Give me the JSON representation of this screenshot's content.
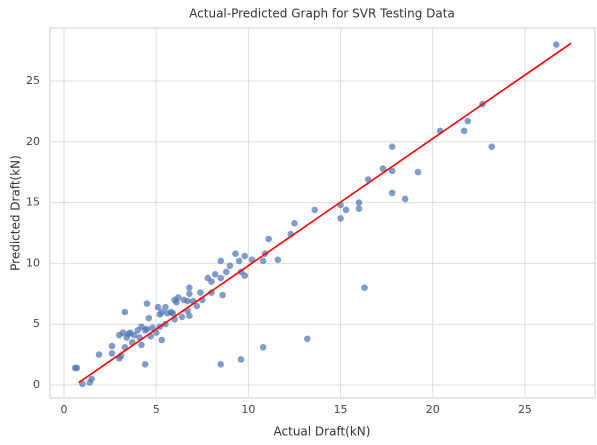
{
  "chart_data": {
    "type": "scatter",
    "title": "Actual-Predicted Graph for SVR Testing Data",
    "x_label": "Actual Draft(kN)",
    "y_label": "Predicted Draft(kN)",
    "xlim": [
      -0.76,
      28.8
    ],
    "ylim": [
      -1.07,
      29.36
    ],
    "xticks": [
      0,
      5,
      10,
      15,
      20,
      25
    ],
    "yticks": [
      0,
      5,
      10,
      15,
      20,
      25
    ],
    "grid": true,
    "series": [
      {
        "type": "scatter",
        "color": "#4c72b0",
        "x": [
          26.7,
          23.2,
          22.7,
          21.9,
          21.7,
          20.4,
          19.2,
          18.5,
          17.8,
          17.8,
          17.8,
          17.3,
          16.5,
          16.0,
          16.0,
          15.3,
          15.0,
          15.0,
          16.3,
          13.6,
          13.2,
          12.5,
          12.3,
          11.6,
          11.1,
          10.9,
          10.8,
          10.8,
          10.2,
          9.8,
          9.8,
          9.6,
          9.5,
          9.6,
          9.3,
          9.0,
          8.8,
          8.6,
          8.5,
          8.5,
          8.5,
          8.2,
          8.0,
          7.8,
          8.0,
          7.5,
          7.4,
          7.0,
          6.8,
          6.8,
          6.7,
          6.5,
          6.8,
          6.4,
          6.2,
          6.0,
          6.1,
          6.0,
          5.8,
          5.6,
          5.5,
          5.3,
          5.2,
          5.1,
          5.5,
          5.2,
          5.3,
          5.0,
          4.8,
          4.6,
          4.5,
          4.5,
          4.4,
          4.2,
          4.2,
          4.1,
          4.0,
          3.8,
          3.6,
          3.5,
          3.4,
          3.3,
          3.2,
          3.0,
          3.3,
          3.1,
          3.0,
          4.4,
          2.6,
          2.6,
          1.9,
          1.5,
          1.4,
          1.0,
          0.7,
          0.6,
          5.9,
          6.7,
          7.2,
          3.7,
          4.7
        ],
        "values": [
          28.0,
          19.6,
          23.1,
          21.7,
          20.9,
          20.9,
          17.5,
          15.3,
          19.6,
          17.6,
          15.8,
          17.8,
          16.9,
          15.0,
          14.5,
          14.4,
          14.8,
          13.7,
          8.0,
          14.4,
          3.8,
          13.3,
          12.4,
          10.3,
          12.0,
          10.8,
          10.2,
          3.1,
          10.3,
          10.6,
          9.0,
          9.3,
          10.2,
          2.1,
          10.8,
          9.8,
          9.3,
          7.4,
          10.2,
          8.8,
          1.7,
          9.1,
          8.5,
          8.8,
          7.6,
          7.0,
          7.6,
          6.9,
          7.5,
          8.0,
          6.9,
          7.0,
          5.7,
          5.6,
          7.2,
          7.0,
          6.8,
          5.4,
          6.0,
          5.9,
          6.4,
          6.0,
          5.8,
          6.4,
          5.0,
          4.8,
          3.7,
          4.3,
          4.7,
          5.5,
          6.7,
          4.6,
          4.5,
          4.8,
          3.3,
          3.9,
          4.5,
          4.1,
          4.3,
          4.2,
          3.9,
          6.0,
          4.3,
          4.1,
          3.1,
          2.4,
          2.2,
          1.7,
          2.6,
          3.2,
          2.5,
          0.5,
          0.2,
          0.1,
          1.4,
          1.4,
          5.9,
          6.1,
          6.5,
          3.5,
          4.0
        ]
      },
      {
        "type": "line",
        "color": "#ff0000",
        "x": [
          0.8,
          27.5
        ],
        "values": [
          0.2,
          28.1
        ]
      }
    ]
  }
}
